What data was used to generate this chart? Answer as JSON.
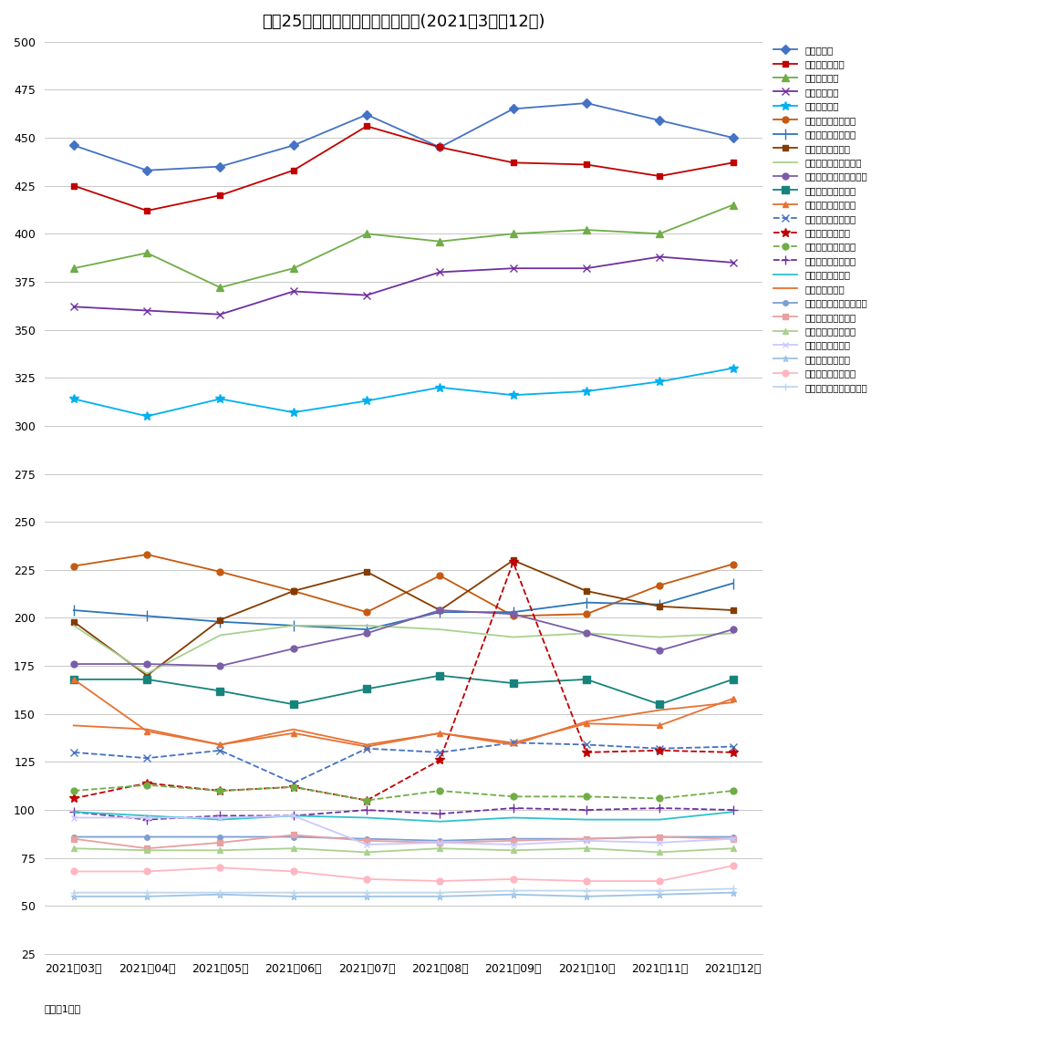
{
  "title": "主要25市区マンション坪単価推移(2021年3月～12月)",
  "xlabel_note": "単位：1万円",
  "months": [
    "2021年03月",
    "2021年04月",
    "2021年05月",
    "2021年06月",
    "2021年07月",
    "2021年08月",
    "2021年09月",
    "2021年10月",
    "2021年11月",
    "2021年12月"
  ],
  "ylim": [
    25,
    500
  ],
  "yticks": [
    25,
    50,
    75,
    100,
    125,
    150,
    175,
    200,
    225,
    250,
    275,
    300,
    325,
    350,
    375,
    400,
    425,
    450,
    475,
    500
  ],
  "series": [
    {
      "name": "東京都港区",
      "color": "#4472C4",
      "marker": "D",
      "ms": 5,
      "ls": "-",
      "values": [
        446,
        433,
        435,
        446,
        462,
        445,
        465,
        468,
        459,
        450
      ]
    },
    {
      "name": "東京都千代田区",
      "color": "#C00000",
      "marker": "s",
      "ms": 5,
      "ls": "-",
      "values": [
        425,
        412,
        420,
        433,
        456,
        445,
        437,
        436,
        430,
        437
      ]
    },
    {
      "name": "東京都渋谷区",
      "color": "#70AD47",
      "marker": "^",
      "ms": 6,
      "ls": "-",
      "values": [
        382,
        390,
        372,
        382,
        400,
        396,
        400,
        402,
        400,
        415
      ]
    },
    {
      "name": "東京都中央区",
      "color": "#7030A0",
      "marker": "x",
      "ms": 6,
      "ls": "-",
      "values": [
        362,
        360,
        358,
        370,
        368,
        380,
        382,
        382,
        388,
        385
      ]
    },
    {
      "name": "東京都新宿区",
      "color": "#00B0F0",
      "marker": "*",
      "ms": 7,
      "ls": "-",
      "values": [
        314,
        305,
        314,
        307,
        313,
        320,
        316,
        318,
        323,
        330
      ]
    },
    {
      "name": "京都府京都市中京区",
      "color": "#C55A11",
      "marker": "o",
      "ms": 5,
      "ls": "-",
      "values": [
        227,
        233,
        224,
        214,
        203,
        222,
        201,
        202,
        217,
        228
      ]
    },
    {
      "name": "神奈川県横浜市中区",
      "color": "#2E75B6",
      "marker": "|",
      "ms": 8,
      "ls": "-",
      "values": [
        204,
        201,
        198,
        196,
        194,
        203,
        203,
        208,
        207,
        218
      ]
    },
    {
      "name": "大阪府大阪市北区",
      "color": "#843C00",
      "marker": "s",
      "ms": 4,
      "ls": "-",
      "values": [
        198,
        170,
        199,
        214,
        224,
        204,
        230,
        214,
        206,
        204
      ]
    },
    {
      "name": "神奈川県川崎市川崎区",
      "color": "#A9D18E",
      "marker": "",
      "ms": 4,
      "ls": "-",
      "values": [
        196,
        171,
        191,
        196,
        196,
        194,
        190,
        192,
        190,
        192
      ]
    },
    {
      "name": "埼玉県さいたま市浦和区",
      "color": "#7B5EA7",
      "marker": "o",
      "ms": 5,
      "ls": "-",
      "values": [
        176,
        176,
        175,
        184,
        192,
        204,
        202,
        192,
        183,
        194
      ]
    },
    {
      "name": "兵庫県神戸市中央区",
      "color": "#17847C",
      "marker": "s",
      "ms": 6,
      "ls": "-",
      "values": [
        168,
        168,
        162,
        155,
        163,
        170,
        166,
        168,
        155,
        168
      ]
    },
    {
      "name": "愛知県名古屋市中区",
      "color": "#E97132",
      "marker": "^",
      "ms": 5,
      "ls": "-",
      "values": [
        168,
        141,
        134,
        140,
        133,
        140,
        135,
        145,
        144,
        158
      ]
    },
    {
      "name": "福岡県福岡市中央区",
      "color": "#4472C4",
      "marker": "x",
      "ms": 6,
      "ls": "--",
      "values": [
        130,
        127,
        131,
        114,
        132,
        130,
        135,
        134,
        132,
        133
      ]
    },
    {
      "name": "広島県広島市中区",
      "color": "#C00000",
      "marker": "*",
      "ms": 7,
      "ls": "--",
      "values": [
        106,
        114,
        110,
        112,
        105,
        126,
        229,
        130,
        131,
        130
      ]
    },
    {
      "name": "千葉県千葉市中央区",
      "color": "#70AD47",
      "marker": "o",
      "ms": 5,
      "ls": "--",
      "values": [
        110,
        113,
        110,
        112,
        105,
        110,
        107,
        107,
        106,
        110
      ]
    },
    {
      "name": "宮城県仙台市青葉区",
      "color": "#7030A0",
      "marker": "+",
      "ms": 7,
      "ls": "--",
      "values": [
        99,
        95,
        97,
        97,
        100,
        98,
        101,
        100,
        101,
        100
      ]
    },
    {
      "name": "岡山県岡山市北区",
      "color": "#2EC2CC",
      "marker": "",
      "ms": 4,
      "ls": "-",
      "values": [
        99,
        97,
        95,
        97,
        96,
        94,
        96,
        95,
        95,
        99
      ]
    },
    {
      "name": "大阪府堺市堺区",
      "color": "#E97132",
      "marker": "",
      "ms": 4,
      "ls": "-",
      "values": [
        144,
        142,
        134,
        142,
        134,
        140,
        134,
        146,
        152,
        156
      ]
    },
    {
      "name": "神奈川県相模原市中央区",
      "color": "#7B9FD4",
      "marker": "o",
      "ms": 4,
      "ls": "-",
      "values": [
        86,
        86,
        86,
        86,
        85,
        84,
        85,
        85,
        86,
        86
      ]
    },
    {
      "name": "北海道札幌市中央区",
      "color": "#E8A0A0",
      "marker": "s",
      "ms": 4,
      "ls": "-",
      "values": [
        85,
        80,
        83,
        87,
        84,
        83,
        84,
        85,
        86,
        85
      ]
    },
    {
      "name": "新潟県新潟市中央区",
      "color": "#A9D18E",
      "marker": "^",
      "ms": 4,
      "ls": "-",
      "values": [
        80,
        79,
        79,
        80,
        78,
        80,
        79,
        80,
        78,
        80
      ]
    },
    {
      "name": "静岡県静岡市葵区",
      "color": "#C9C9FF",
      "marker": "x",
      "ms": 5,
      "ls": "-",
      "values": [
        96,
        96,
        96,
        97,
        82,
        83,
        82,
        84,
        83,
        85
      ]
    },
    {
      "name": "静岡県浜松市中区",
      "color": "#9DC3E6",
      "marker": "*",
      "ms": 5,
      "ls": "-",
      "values": [
        55,
        55,
        56,
        55,
        55,
        55,
        56,
        55,
        56,
        57
      ]
    },
    {
      "name": "熊本県熊本市中央区",
      "color": "#FFB6C1",
      "marker": "o",
      "ms": 5,
      "ls": "-",
      "values": [
        68,
        68,
        70,
        68,
        64,
        63,
        64,
        63,
        63,
        71
      ]
    },
    {
      "name": "福岡県北九州市小倉北区",
      "color": "#BDD7EE",
      "marker": "+",
      "ms": 6,
      "ls": "-",
      "values": [
        57,
        57,
        57,
        57,
        57,
        57,
        58,
        58,
        58,
        59
      ]
    }
  ]
}
